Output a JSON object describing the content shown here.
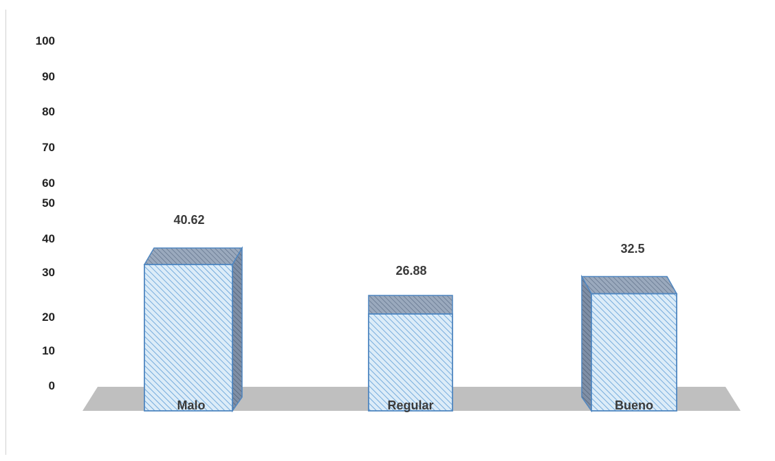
{
  "chart_data": {
    "type": "bar",
    "style": "3d-hatched",
    "categories": [
      "Malo",
      "Regular",
      "Bueno"
    ],
    "values": [
      40.62,
      26.88,
      32.5
    ],
    "data_labels": [
      "40.62",
      "26.88",
      "32.5"
    ],
    "y_ticks": [
      "100",
      "90",
      "80",
      "70",
      "60",
      "50",
      "40",
      "30",
      "20",
      "10",
      "0"
    ],
    "ylim": [
      0,
      100
    ],
    "grid": false,
    "legend": "none",
    "colors": {
      "bar_front": "#dcecf8",
      "bar_hatch": "#5b9bd5",
      "bar_side": "#6b7f96",
      "bar_top": "#8495ab",
      "bar_edge": "#4f86c0",
      "floor": "#bfbfbf",
      "label": "#3a3a3a",
      "axis_text": "#222222"
    }
  }
}
